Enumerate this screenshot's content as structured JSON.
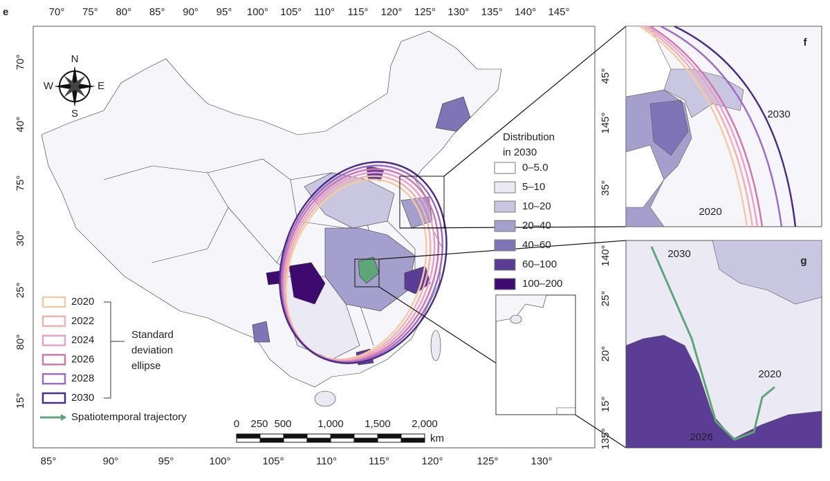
{
  "panel_label": "e",
  "top_axis": [
    "70°",
    "75°",
    "80°",
    "85°",
    "90°",
    "95°",
    "100°",
    "105°",
    "110°",
    "115°",
    "120°",
    "125°",
    "130°",
    "135°",
    "140°",
    "145°"
  ],
  "left_axis": [
    "70°",
    "40°",
    "75°",
    "30°",
    "25°",
    "80°",
    "15°"
  ],
  "right_axis": [
    "45°",
    "145°",
    "35°",
    "140°",
    "25°",
    "20°",
    "15°",
    "135°"
  ],
  "bottom_axis": [
    "85°",
    "90°",
    "95°",
    "100°",
    "105°",
    "110°",
    "115°",
    "120°",
    "125°",
    "130°"
  ],
  "compass": {
    "n": "N",
    "s": "S",
    "w": "W",
    "e": "E"
  },
  "distribution_legend": {
    "title_lines": [
      "Distribution",
      "in 2030"
    ],
    "items": [
      {
        "label": "0–5.0",
        "color": "#ffffff"
      },
      {
        "label": "5–10",
        "color": "#ebe9f4"
      },
      {
        "label": "10–20",
        "color": "#c9c6e2"
      },
      {
        "label": "20–40",
        "color": "#a49fcd"
      },
      {
        "label": "40–60",
        "color": "#7e74b6"
      },
      {
        "label": "60–100",
        "color": "#5b3d96"
      },
      {
        "label": "100–200",
        "color": "#3f0a6f"
      }
    ]
  },
  "ellipse_legend": {
    "items": [
      {
        "label": "2020",
        "color": "#f3cba6"
      },
      {
        "label": "2022",
        "color": "#eeb3ae"
      },
      {
        "label": "2024",
        "color": "#e8a1cc"
      },
      {
        "label": "2026",
        "color": "#d177ab"
      },
      {
        "label": "2028",
        "color": "#a06bc6"
      },
      {
        "label": "2030",
        "color": "#4a2d86"
      }
    ],
    "group_label_lines": [
      "Standard",
      "deviation",
      "ellipse"
    ],
    "trajectory_label": "Spatiotemporal trajectory",
    "trajectory_color": "#5fa57a"
  },
  "scale_bar": {
    "labels": [
      "0",
      "250",
      "500",
      "1,000",
      "1,500",
      "2,000"
    ],
    "unit": "km"
  },
  "panel_f": {
    "label": "f",
    "year_top": "2030",
    "year_bottom": "2020"
  },
  "panel_g": {
    "label": "g",
    "year_start": "2030",
    "year_end": "2020",
    "year_mid": "2026"
  }
}
